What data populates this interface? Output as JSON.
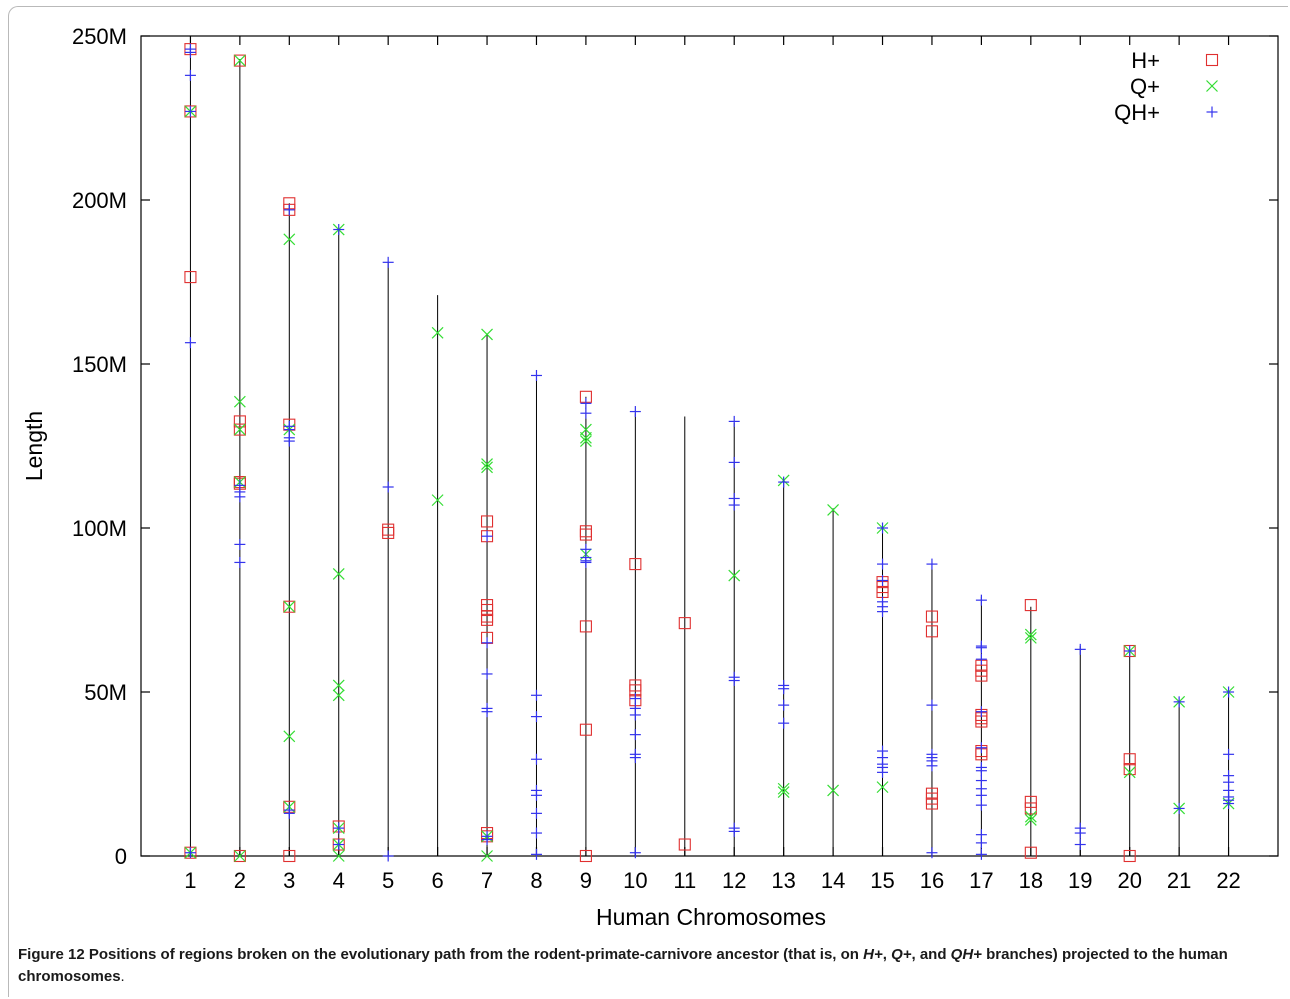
{
  "chart_data": {
    "type": "scatter",
    "xlabel": "Human Chromosomes",
    "ylabel": "Length",
    "x_ticks": [
      "1",
      "2",
      "3",
      "4",
      "5",
      "6",
      "7",
      "8",
      "9",
      "10",
      "11",
      "12",
      "13",
      "14",
      "15",
      "16",
      "17",
      "18",
      "19",
      "20",
      "21",
      "22"
    ],
    "y_ticks": [
      "0",
      "50M",
      "100M",
      "150M",
      "200M",
      "250M"
    ],
    "ylim": [
      0,
      250
    ],
    "y_unit_multiplier": 1000000,
    "xlim": [
      0,
      23
    ],
    "grid": false,
    "legend_position": "top-right",
    "chromosome_lengths": [
      {
        "x": 1,
        "y": 247
      },
      {
        "x": 2,
        "y": 243
      },
      {
        "x": 3,
        "y": 199
      },
      {
        "x": 4,
        "y": 191
      },
      {
        "x": 5,
        "y": 181
      },
      {
        "x": 6,
        "y": 171
      },
      {
        "x": 7,
        "y": 159
      },
      {
        "x": 8,
        "y": 146
      },
      {
        "x": 9,
        "y": 140
      },
      {
        "x": 10,
        "y": 135
      },
      {
        "x": 11,
        "y": 134
      },
      {
        "x": 12,
        "y": 132
      },
      {
        "x": 13,
        "y": 114
      },
      {
        "x": 14,
        "y": 106
      },
      {
        "x": 15,
        "y": 100
      },
      {
        "x": 16,
        "y": 89
      },
      {
        "x": 17,
        "y": 79
      },
      {
        "x": 18,
        "y": 76
      },
      {
        "x": 19,
        "y": 64
      },
      {
        "x": 20,
        "y": 62
      },
      {
        "x": 21,
        "y": 47
      },
      {
        "x": 22,
        "y": 50
      }
    ],
    "series": [
      {
        "name": "H+",
        "marker": "square",
        "color": "#e03030",
        "points": [
          {
            "x": 1,
            "y": 246
          },
          {
            "x": 1,
            "y": 227
          },
          {
            "x": 1,
            "y": 176.5
          },
          {
            "x": 1,
            "y": 1
          },
          {
            "x": 2,
            "y": 242.5
          },
          {
            "x": 2,
            "y": 132.5
          },
          {
            "x": 2,
            "y": 130
          },
          {
            "x": 2,
            "y": 114
          },
          {
            "x": 2,
            "y": 113.5
          },
          {
            "x": 2,
            "y": 0
          },
          {
            "x": 3,
            "y": 199
          },
          {
            "x": 3,
            "y": 197
          },
          {
            "x": 3,
            "y": 131.5
          },
          {
            "x": 3,
            "y": 76
          },
          {
            "x": 3,
            "y": 15
          },
          {
            "x": 3,
            "y": 0
          },
          {
            "x": 4,
            "y": 9
          },
          {
            "x": 4,
            "y": 3.5
          },
          {
            "x": 5,
            "y": 99.5
          },
          {
            "x": 5,
            "y": 98.5
          },
          {
            "x": 7,
            "y": 102
          },
          {
            "x": 7,
            "y": 97.5
          },
          {
            "x": 7,
            "y": 76.5
          },
          {
            "x": 7,
            "y": 75
          },
          {
            "x": 7,
            "y": 73
          },
          {
            "x": 7,
            "y": 72
          },
          {
            "x": 7,
            "y": 66.5
          },
          {
            "x": 7,
            "y": 7
          },
          {
            "x": 7,
            "y": 6
          },
          {
            "x": 9,
            "y": 140
          },
          {
            "x": 9,
            "y": 99
          },
          {
            "x": 9,
            "y": 98
          },
          {
            "x": 9,
            "y": 70
          },
          {
            "x": 9,
            "y": 38.5
          },
          {
            "x": 9,
            "y": 0
          },
          {
            "x": 10,
            "y": 89
          },
          {
            "x": 10,
            "y": 52
          },
          {
            "x": 10,
            "y": 50.5
          },
          {
            "x": 10,
            "y": 47.5
          },
          {
            "x": 11,
            "y": 71
          },
          {
            "x": 11,
            "y": 3.5
          },
          {
            "x": 15,
            "y": 83.5
          },
          {
            "x": 15,
            "y": 82
          },
          {
            "x": 15,
            "y": 80.5
          },
          {
            "x": 16,
            "y": 73
          },
          {
            "x": 16,
            "y": 68.5
          },
          {
            "x": 16,
            "y": 19
          },
          {
            "x": 16,
            "y": 17.5
          },
          {
            "x": 16,
            "y": 16
          },
          {
            "x": 17,
            "y": 58
          },
          {
            "x": 17,
            "y": 56.5
          },
          {
            "x": 17,
            "y": 55
          },
          {
            "x": 17,
            "y": 43
          },
          {
            "x": 17,
            "y": 42
          },
          {
            "x": 17,
            "y": 41
          },
          {
            "x": 17,
            "y": 32
          },
          {
            "x": 17,
            "y": 31
          },
          {
            "x": 18,
            "y": 76.5
          },
          {
            "x": 18,
            "y": 16.5
          },
          {
            "x": 18,
            "y": 14.5
          },
          {
            "x": 18,
            "y": 1
          },
          {
            "x": 20,
            "y": 62.5
          },
          {
            "x": 20,
            "y": 29.5
          },
          {
            "x": 20,
            "y": 26.5
          },
          {
            "x": 20,
            "y": 0
          }
        ]
      },
      {
        "name": "Q+",
        "marker": "cross",
        "color": "#33dd33",
        "points": [
          {
            "x": 1,
            "y": 227
          },
          {
            "x": 1,
            "y": 1
          },
          {
            "x": 2,
            "y": 242.5
          },
          {
            "x": 2,
            "y": 138.5
          },
          {
            "x": 2,
            "y": 130
          },
          {
            "x": 2,
            "y": 114
          },
          {
            "x": 2,
            "y": 0
          },
          {
            "x": 3,
            "y": 188
          },
          {
            "x": 3,
            "y": 130
          },
          {
            "x": 3,
            "y": 76
          },
          {
            "x": 3,
            "y": 36.5
          },
          {
            "x": 3,
            "y": 15
          },
          {
            "x": 4,
            "y": 191
          },
          {
            "x": 4,
            "y": 86
          },
          {
            "x": 4,
            "y": 52
          },
          {
            "x": 4,
            "y": 49
          },
          {
            "x": 4,
            "y": 8.5
          },
          {
            "x": 4,
            "y": 3.5
          },
          {
            "x": 4,
            "y": 0
          },
          {
            "x": 6,
            "y": 159.5
          },
          {
            "x": 6,
            "y": 108.5
          },
          {
            "x": 7,
            "y": 159
          },
          {
            "x": 7,
            "y": 119.5
          },
          {
            "x": 7,
            "y": 118.5
          },
          {
            "x": 7,
            "y": 6
          },
          {
            "x": 7,
            "y": 0
          },
          {
            "x": 9,
            "y": 130
          },
          {
            "x": 9,
            "y": 127.5
          },
          {
            "x": 9,
            "y": 126.5
          },
          {
            "x": 9,
            "y": 92
          },
          {
            "x": 12,
            "y": 85.5
          },
          {
            "x": 13,
            "y": 114.5
          },
          {
            "x": 13,
            "y": 20.5
          },
          {
            "x": 13,
            "y": 19.5
          },
          {
            "x": 14,
            "y": 105.5
          },
          {
            "x": 14,
            "y": 20
          },
          {
            "x": 15,
            "y": 100
          },
          {
            "x": 15,
            "y": 21
          },
          {
            "x": 18,
            "y": 67.5
          },
          {
            "x": 18,
            "y": 66.5
          },
          {
            "x": 18,
            "y": 12
          },
          {
            "x": 18,
            "y": 11
          },
          {
            "x": 20,
            "y": 62.5
          },
          {
            "x": 20,
            "y": 25.5
          },
          {
            "x": 21,
            "y": 47
          },
          {
            "x": 21,
            "y": 14.5
          },
          {
            "x": 22,
            "y": 50
          },
          {
            "x": 22,
            "y": 16
          }
        ]
      },
      {
        "name": "QH+",
        "marker": "plus",
        "color": "#3333ee",
        "points": [
          {
            "x": 1,
            "y": 246
          },
          {
            "x": 1,
            "y": 245
          },
          {
            "x": 1,
            "y": 238
          },
          {
            "x": 1,
            "y": 227
          },
          {
            "x": 1,
            "y": 156.5
          },
          {
            "x": 1,
            "y": 1
          },
          {
            "x": 2,
            "y": 113
          },
          {
            "x": 2,
            "y": 111
          },
          {
            "x": 2,
            "y": 109.5
          },
          {
            "x": 2,
            "y": 95
          },
          {
            "x": 2,
            "y": 89.5
          },
          {
            "x": 3,
            "y": 197
          },
          {
            "x": 3,
            "y": 131
          },
          {
            "x": 3,
            "y": 130
          },
          {
            "x": 3,
            "y": 127.5
          },
          {
            "x": 3,
            "y": 126.5
          },
          {
            "x": 3,
            "y": 14
          },
          {
            "x": 3,
            "y": 13
          },
          {
            "x": 4,
            "y": 191
          },
          {
            "x": 4,
            "y": 8.5
          },
          {
            "x": 4,
            "y": 3.5
          },
          {
            "x": 5,
            "y": 181
          },
          {
            "x": 5,
            "y": 112.5
          },
          {
            "x": 5,
            "y": 0
          },
          {
            "x": 7,
            "y": 97.5
          },
          {
            "x": 7,
            "y": 65
          },
          {
            "x": 7,
            "y": 55.5
          },
          {
            "x": 7,
            "y": 45
          },
          {
            "x": 7,
            "y": 44
          },
          {
            "x": 7,
            "y": 6
          },
          {
            "x": 7,
            "y": 5
          },
          {
            "x": 8,
            "y": 146.5
          },
          {
            "x": 8,
            "y": 49
          },
          {
            "x": 8,
            "y": 42.5
          },
          {
            "x": 8,
            "y": 29.5
          },
          {
            "x": 8,
            "y": 20
          },
          {
            "x": 8,
            "y": 18.5
          },
          {
            "x": 8,
            "y": 13
          },
          {
            "x": 8,
            "y": 7
          },
          {
            "x": 8,
            "y": 0.5
          },
          {
            "x": 9,
            "y": 138
          },
          {
            "x": 9,
            "y": 135
          },
          {
            "x": 9,
            "y": 93.5
          },
          {
            "x": 9,
            "y": 91
          },
          {
            "x": 9,
            "y": 90
          },
          {
            "x": 9,
            "y": 89.5
          },
          {
            "x": 10,
            "y": 135.5
          },
          {
            "x": 10,
            "y": 48
          },
          {
            "x": 10,
            "y": 45
          },
          {
            "x": 10,
            "y": 43
          },
          {
            "x": 10,
            "y": 37
          },
          {
            "x": 10,
            "y": 31
          },
          {
            "x": 10,
            "y": 30
          },
          {
            "x": 10,
            "y": 1
          },
          {
            "x": 12,
            "y": 132.5
          },
          {
            "x": 12,
            "y": 120
          },
          {
            "x": 12,
            "y": 109
          },
          {
            "x": 12,
            "y": 107
          },
          {
            "x": 12,
            "y": 54.5
          },
          {
            "x": 12,
            "y": 53.5
          },
          {
            "x": 12,
            "y": 8.5
          },
          {
            "x": 12,
            "y": 7.5
          },
          {
            "x": 13,
            "y": 114
          },
          {
            "x": 13,
            "y": 52
          },
          {
            "x": 13,
            "y": 51
          },
          {
            "x": 13,
            "y": 46
          },
          {
            "x": 13,
            "y": 40.5
          },
          {
            "x": 15,
            "y": 100
          },
          {
            "x": 15,
            "y": 89
          },
          {
            "x": 15,
            "y": 84
          },
          {
            "x": 15,
            "y": 77.5
          },
          {
            "x": 15,
            "y": 76
          },
          {
            "x": 15,
            "y": 74.5
          },
          {
            "x": 15,
            "y": 32
          },
          {
            "x": 15,
            "y": 30
          },
          {
            "x": 15,
            "y": 28
          },
          {
            "x": 15,
            "y": 27
          },
          {
            "x": 15,
            "y": 25.5
          },
          {
            "x": 16,
            "y": 89
          },
          {
            "x": 16,
            "y": 46
          },
          {
            "x": 16,
            "y": 31
          },
          {
            "x": 16,
            "y": 30
          },
          {
            "x": 16,
            "y": 29
          },
          {
            "x": 16,
            "y": 27.5
          },
          {
            "x": 16,
            "y": 1
          },
          {
            "x": 17,
            "y": 78
          },
          {
            "x": 17,
            "y": 64
          },
          {
            "x": 17,
            "y": 63.5
          },
          {
            "x": 17,
            "y": 60
          },
          {
            "x": 17,
            "y": 44
          },
          {
            "x": 17,
            "y": 33
          },
          {
            "x": 17,
            "y": 27
          },
          {
            "x": 17,
            "y": 26
          },
          {
            "x": 17,
            "y": 23
          },
          {
            "x": 17,
            "y": 20.5
          },
          {
            "x": 17,
            "y": 18.5
          },
          {
            "x": 17,
            "y": 15.5
          },
          {
            "x": 17,
            "y": 6.5
          },
          {
            "x": 17,
            "y": 4
          },
          {
            "x": 17,
            "y": 0.5
          },
          {
            "x": 19,
            "y": 63
          },
          {
            "x": 19,
            "y": 8.5
          },
          {
            "x": 19,
            "y": 7
          },
          {
            "x": 19,
            "y": 3.5
          },
          {
            "x": 20,
            "y": 62.5
          },
          {
            "x": 21,
            "y": 47
          },
          {
            "x": 21,
            "y": 14.5
          },
          {
            "x": 22,
            "y": 50
          },
          {
            "x": 22,
            "y": 31
          },
          {
            "x": 22,
            "y": 24.5
          },
          {
            "x": 22,
            "y": 22.5
          },
          {
            "x": 22,
            "y": 20
          },
          {
            "x": 22,
            "y": 18
          },
          {
            "x": 22,
            "y": 17
          },
          {
            "x": 22,
            "y": 16
          }
        ]
      }
    ]
  },
  "caption": {
    "label": "Figure 12",
    "text": " Positions of regions broken on the evolutionary path from the rodent-primate-carnivore ancestor (that is, on ",
    "h_branch": "H+",
    "sep1": ", ",
    "q_branch": "Q+",
    "sep2": ", and ",
    "qh_branch": "QH+",
    "text_end": " branches) projected to the human chromosomes",
    "period": "."
  }
}
